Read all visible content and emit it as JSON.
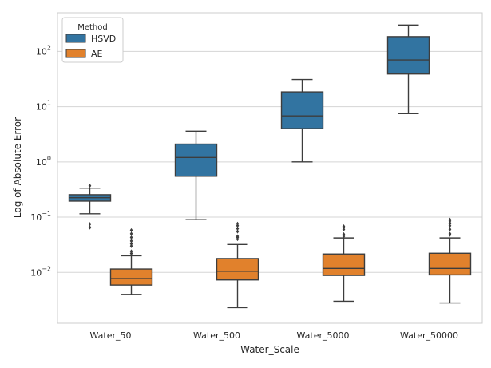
{
  "chart_data": {
    "type": "boxplot",
    "title": "",
    "xlabel": "Water_Scale",
    "ylabel": "Log of Absolute Error",
    "yscale": "log",
    "ylim": [
      0.0012,
      500
    ],
    "grid": "horizontal",
    "categories": [
      "Water_50",
      "Water_500",
      "Water_5000",
      "Water_50000"
    ],
    "yticks": [
      {
        "value": 0.01,
        "base": "10",
        "exp": "−2"
      },
      {
        "value": 0.1,
        "base": "10",
        "exp": "−1"
      },
      {
        "value": 1,
        "base": "10",
        "exp": "0"
      },
      {
        "value": 10,
        "base": "10",
        "exp": "1"
      },
      {
        "value": 100,
        "base": "10",
        "exp": "2"
      }
    ],
    "legend": {
      "title": "Method",
      "position": "top-left"
    },
    "series": [
      {
        "name": "HSVD",
        "color": "#3274a1",
        "boxes": [
          {
            "category": "Water_50",
            "whisker_low": 0.115,
            "q1": 0.195,
            "median": 0.225,
            "q3": 0.255,
            "whisker_high": 0.335,
            "fliers": [
              0.065,
              0.075,
              0.37
            ]
          },
          {
            "category": "Water_500",
            "whisker_low": 0.09,
            "q1": 0.55,
            "median": 1.2,
            "q3": 2.1,
            "whisker_high": 3.6,
            "fliers": []
          },
          {
            "category": "Water_5000",
            "whisker_low": 1.0,
            "q1": 4.0,
            "median": 6.8,
            "q3": 18.5,
            "whisker_high": 31.0,
            "fliers": []
          },
          {
            "category": "Water_50000",
            "whisker_low": 7.5,
            "q1": 39.0,
            "median": 70.0,
            "q3": 185.0,
            "whisker_high": 300.0,
            "fliers": []
          }
        ]
      },
      {
        "name": "AE",
        "color": "#e1812c",
        "boxes": [
          {
            "category": "Water_50",
            "whisker_low": 0.004,
            "q1": 0.0059,
            "median": 0.0077,
            "q3": 0.0115,
            "whisker_high": 0.02,
            "fliers": [
              0.022,
              0.024,
              0.03,
              0.033,
              0.037,
              0.043,
              0.05,
              0.058
            ]
          },
          {
            "category": "Water_500",
            "whisker_low": 0.0023,
            "q1": 0.0073,
            "median": 0.0105,
            "q3": 0.0178,
            "whisker_high": 0.032,
            "fliers": [
              0.04,
              0.043,
              0.045,
              0.055,
              0.062,
              0.07,
              0.076
            ]
          },
          {
            "category": "Water_5000",
            "whisker_low": 0.003,
            "q1": 0.0088,
            "median": 0.0118,
            "q3": 0.0215,
            "whisker_high": 0.042,
            "fliers": [
              0.045,
              0.049,
              0.06,
              0.065,
              0.068
            ]
          },
          {
            "category": "Water_50000",
            "whisker_low": 0.0028,
            "q1": 0.009,
            "median": 0.0118,
            "q3": 0.0222,
            "whisker_high": 0.042,
            "fliers": [
              0.048,
              0.05,
              0.06,
              0.07,
              0.078,
              0.085,
              0.09
            ]
          }
        ]
      }
    ]
  }
}
